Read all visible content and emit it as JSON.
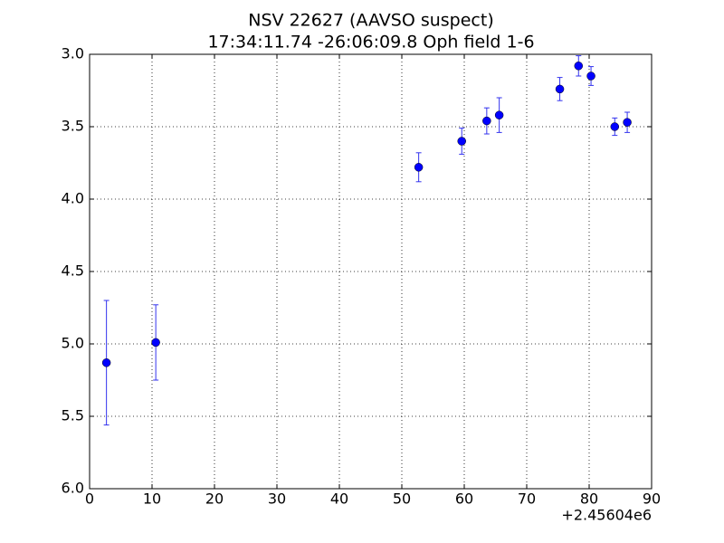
{
  "chart_data": {
    "type": "errorbar",
    "title": "NSV 22627 (AAVSO suspect)",
    "subtitle": "17:34:11.74 -26:06:09.8 Oph field 1-6",
    "x_offset_label": "+2.45604e6",
    "x": [
      2.7,
      10.6,
      52.7,
      59.6,
      63.6,
      65.6,
      75.3,
      78.3,
      80.3,
      84.1,
      86.1
    ],
    "values": [
      5.13,
      4.99,
      3.78,
      3.6,
      3.46,
      3.42,
      3.24,
      3.08,
      3.15,
      3.5,
      3.47
    ],
    "errors": [
      0.43,
      0.26,
      0.1,
      0.09,
      0.09,
      0.12,
      0.08,
      0.07,
      0.065,
      0.06,
      0.07
    ],
    "color": "#0000ff",
    "errorbar_color": "#3333ee",
    "xlim": [
      0,
      90
    ],
    "xticks": [
      0,
      10,
      20,
      30,
      40,
      50,
      60,
      70,
      80,
      90
    ],
    "ylim": [
      3,
      6
    ],
    "y_inverted": true,
    "yticks": [
      {
        "value": 3,
        "label": "3.0"
      },
      3.5,
      {
        "value": 4,
        "label": "4.0"
      },
      4.5,
      {
        "value": 5,
        "label": "5.0"
      },
      5.5,
      {
        "value": 6,
        "label": "6.0"
      }
    ],
    "grid": true
  }
}
